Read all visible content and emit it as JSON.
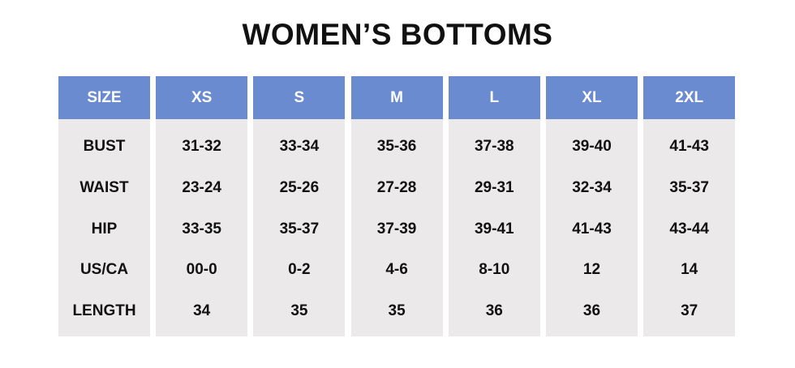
{
  "title": "WOMEN’S BOTTOMS",
  "table": {
    "header": [
      "SIZE",
      "XS",
      "S",
      "M",
      "L",
      "XL",
      "2XL"
    ],
    "rows": [
      [
        "BUST",
        "31-32",
        "33-34",
        "35-36",
        "37-38",
        "39-40",
        "41-43"
      ],
      [
        "WAIST",
        "23-24",
        "25-26",
        "27-28",
        "29-31",
        "32-34",
        "35-37"
      ],
      [
        "HIP",
        "33-35",
        "35-37",
        "37-39",
        "39-41",
        "41-43",
        "43-44"
      ],
      [
        "US/CA",
        "00-0",
        "0-2",
        "4-6",
        "8-10",
        "12",
        "14"
      ],
      [
        "LENGTH",
        "34",
        "35",
        "35",
        "36",
        "36",
        "37"
      ]
    ]
  }
}
